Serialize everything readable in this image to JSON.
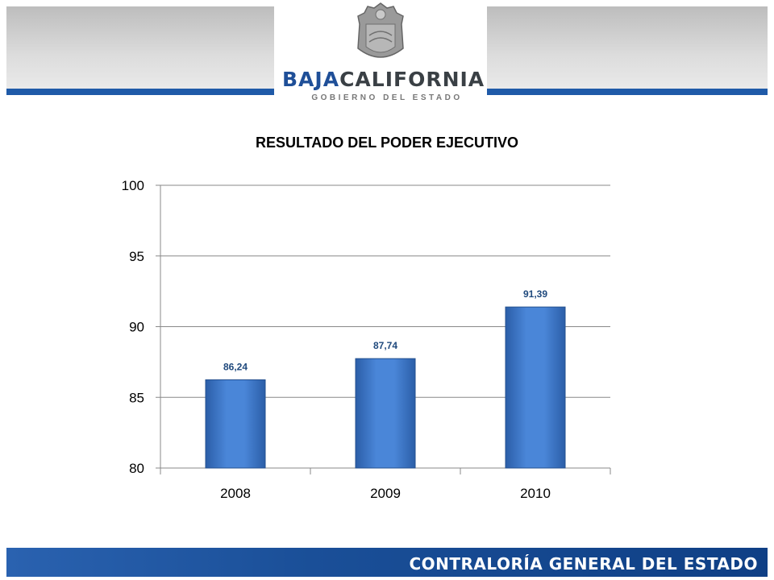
{
  "header": {
    "logo_part1": "BAJA",
    "logo_part2": "CALIFORNIA",
    "logo_subtitle": "GOBIERNO DEL ESTADO",
    "seal_icon": "state-coat-of-arms-icon"
  },
  "footer": {
    "text": "CONTRALORÍA GENERAL DEL ESTADO"
  },
  "colors": {
    "bar": "#3f7bd0",
    "bar_dark": "#2e5fa8",
    "data_label": "#1f497d",
    "grid": "#888888",
    "header_stripe": "#1f5aa8",
    "footer": "#1a4f98"
  },
  "chart_data": {
    "type": "bar",
    "title": "RESULTADO DEL PODER EJECUTIVO",
    "categories": [
      "2008",
      "2009",
      "2010"
    ],
    "values": [
      86.24,
      87.74,
      91.39
    ],
    "data_labels": [
      "86,24",
      "87,74",
      "91,39"
    ],
    "ylim": [
      80,
      100
    ],
    "yticks": [
      "80",
      "85",
      "90",
      "95",
      "100"
    ],
    "xlabel": "",
    "ylabel": "",
    "grid": true,
    "legend": "none"
  }
}
